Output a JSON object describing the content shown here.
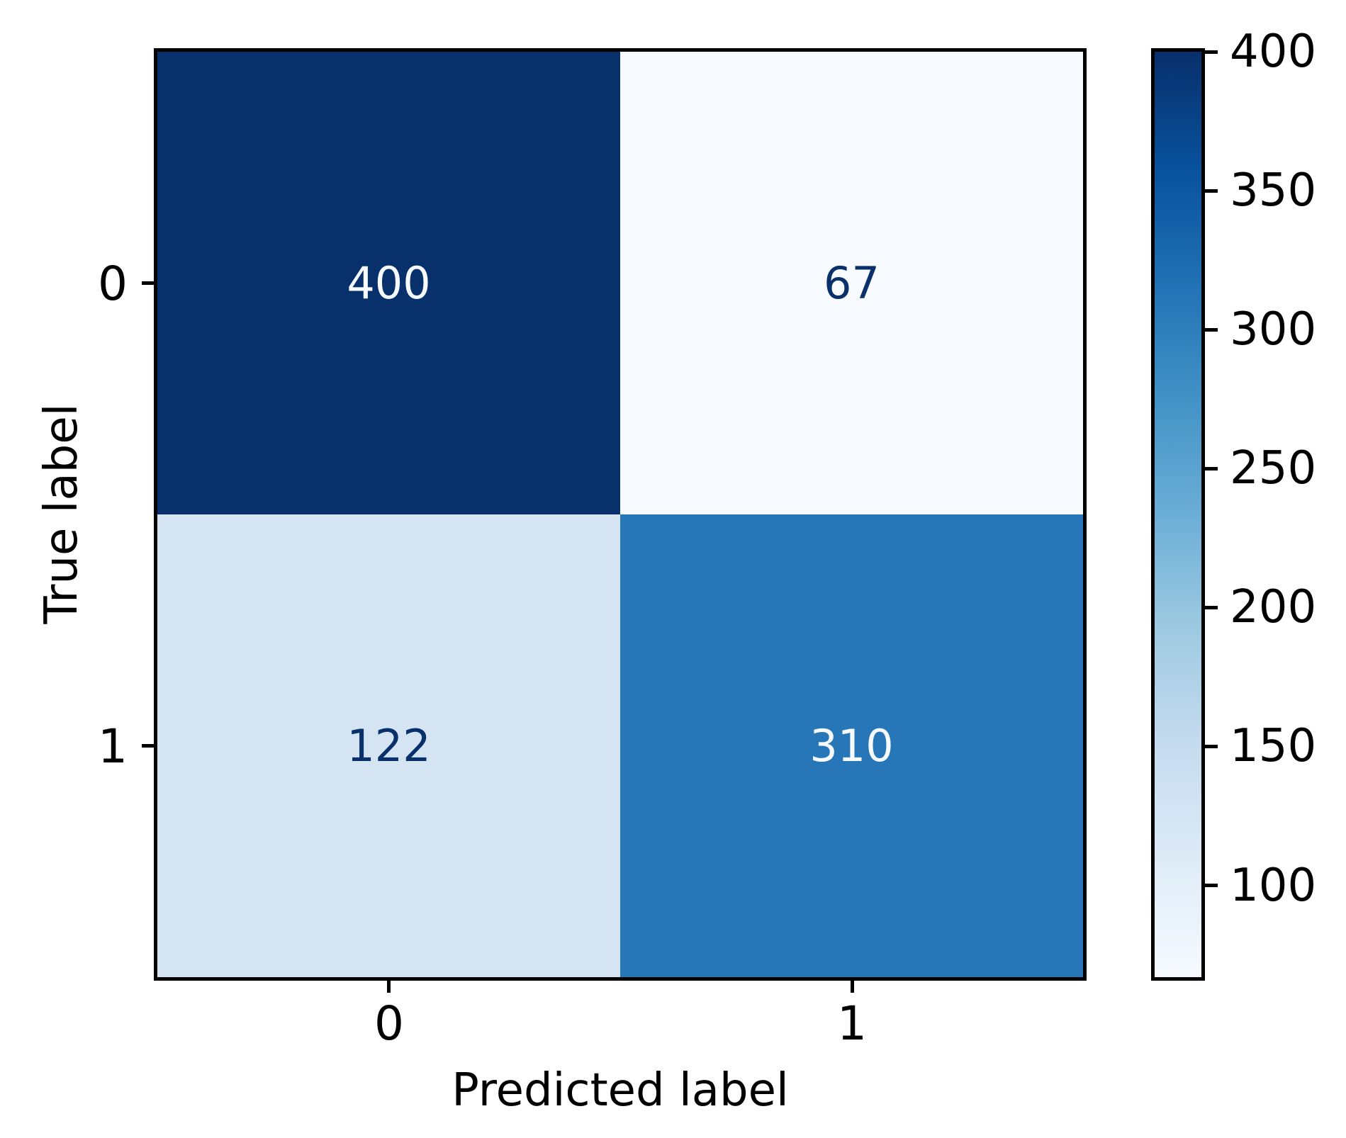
{
  "chart_data": {
    "type": "heatmap",
    "title": "",
    "xlabel": "Predicted label",
    "ylabel": "True label",
    "x_tick_labels": [
      "0",
      "1"
    ],
    "y_tick_labels": [
      "0",
      "1"
    ],
    "matrix_rows": [
      {
        "true_label": "0",
        "values": [
          400,
          67
        ]
      },
      {
        "true_label": "1",
        "values": [
          122,
          310
        ]
      }
    ],
    "vmin": 67,
    "vmax": 400,
    "colormap": "Blues",
    "grid": false,
    "colorbar": {
      "position": "right",
      "ticks": [
        100,
        150,
        200,
        250,
        300,
        350,
        400
      ]
    }
  },
  "cells": [
    {
      "value": "400",
      "bg": "#08306b",
      "fg": "#f7fbff"
    },
    {
      "value": "67",
      "bg": "#f7fbff",
      "fg": "#08306b"
    },
    {
      "value": "122",
      "bg": "#d4e4f3",
      "fg": "#08306b"
    },
    {
      "value": "310",
      "bg": "#2676b8",
      "fg": "#f7fbff"
    }
  ],
  "colorbar_gradient_top_to_bottom": [
    "#08306b",
    "#08519c",
    "#2171b5",
    "#4292c6",
    "#6baed6",
    "#9ecae1",
    "#c6dbef",
    "#deebf7",
    "#f7fbff"
  ],
  "colors": {
    "background": "#ffffff",
    "spine": "#000000",
    "tick": "#000000",
    "text": "#000000"
  }
}
